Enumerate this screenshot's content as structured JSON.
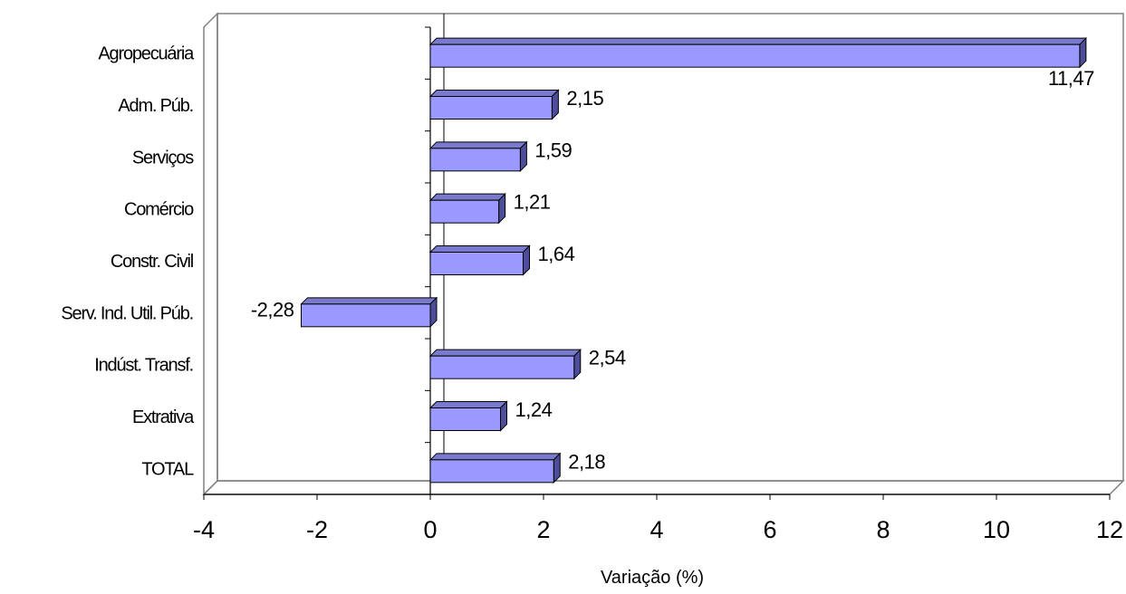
{
  "chart_data": {
    "type": "bar",
    "orientation": "horizontal",
    "style": "3d",
    "categories": [
      "Agropecuária",
      "Adm. Púb.",
      "Serviços",
      "Comércio",
      "Constr. Civil",
      "Serv. Ind. Util. Púb.",
      "Indúst. Transf.",
      "Extrativa",
      "TOTAL"
    ],
    "values": [
      11.47,
      2.15,
      1.59,
      1.21,
      1.64,
      -2.28,
      2.54,
      1.24,
      2.18
    ],
    "value_labels": [
      "11,47",
      "2,15",
      "1,59",
      "1,21",
      "1,64",
      "-2,28",
      "2,54",
      "1,24",
      "2,18"
    ],
    "xlabel": "Variação (%)",
    "xlim": [
      -4,
      12
    ],
    "xticks": [
      -4,
      -2,
      0,
      2,
      4,
      6,
      8,
      10,
      12
    ],
    "xtick_labels": [
      "-4",
      "-2",
      "0",
      "2",
      "4",
      "6",
      "8",
      "10",
      "12"
    ],
    "grid": false,
    "legend": "none",
    "colors": {
      "bar_front": "#9999ff",
      "bar_top": "#7a7acc",
      "bar_side": "#4d4d99",
      "outline": "#000000",
      "wall": "#808080"
    }
  }
}
